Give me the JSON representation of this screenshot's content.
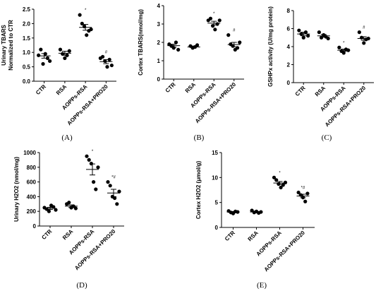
{
  "chart_data": [
    {
      "type": "dot",
      "label": "(A)",
      "ylabel": [
        "Urinary TBARS",
        "Normalized to CTR"
      ],
      "categories": [
        "CTR",
        "RSA",
        "AOPPs-RSA",
        "AOPPs-RSA+PRO20"
      ],
      "points": [
        [
          0.9,
          1.1,
          0.6,
          0.95,
          0.8,
          0.7
        ],
        [
          1.1,
          0.95,
          0.8,
          0.9,
          1.05
        ],
        [
          2.3,
          2.0,
          1.9,
          1.6,
          1.75,
          1.8
        ],
        [
          0.8,
          0.85,
          0.7,
          0.5,
          0.75,
          0.55
        ]
      ],
      "means": [
        0.88,
        0.97,
        1.87,
        0.68
      ],
      "errors": [
        0.08,
        0.07,
        0.1,
        0.07
      ],
      "annotations": [
        null,
        null,
        "*",
        "#"
      ],
      "ylim": [
        0,
        2.5
      ],
      "yticks": [
        {
          "value": 0,
          "label": "0.0"
        },
        0.5,
        {
          "value": 1,
          "label": "1.0"
        },
        1.5,
        {
          "value": 2,
          "label": "2.0"
        },
        2.5
      ],
      "color": "#000000"
    },
    {
      "type": "dot",
      "label": "(B)",
      "ylabel": [
        "Cortex TBARS(nmol/mg)"
      ],
      "categories": [
        "CTR",
        "RSA",
        "AOPPs-RSA",
        "AOPPs-RSA+PRO20"
      ],
      "points": [
        [
          1.9,
          1.8,
          1.7,
          2.0,
          1.6
        ],
        [
          1.8,
          1.7,
          1.75,
          1.85
        ],
        [
          3.2,
          3.3,
          2.9,
          2.7,
          3.0,
          3.2
        ],
        [
          2.4,
          1.9,
          1.8,
          1.6,
          1.7,
          2.0
        ]
      ],
      "means": [
        1.82,
        1.75,
        3.05,
        1.88
      ],
      "errors": [
        0.08,
        0.05,
        0.1,
        0.12
      ],
      "annotations": [
        null,
        null,
        "*",
        "#"
      ],
      "ylim": [
        0,
        4
      ],
      "yticks": [
        0,
        1,
        2,
        3,
        4
      ],
      "color": "#000000"
    },
    {
      "type": "dot",
      "label": "(C)",
      "ylabel": [
        "GSHPx activity (U/mg protein)"
      ],
      "categories": [
        "CTR",
        "RSA",
        "AOPPs-RSA",
        "AOPPs-RSA+PRO20"
      ],
      "points": [
        [
          5.8,
          5.4,
          5.0,
          5.6,
          5.2
        ],
        [
          5.6,
          5.0,
          5.3,
          5.1,
          4.9
        ],
        [
          3.9,
          3.5,
          3.3,
          3.7,
          3.6
        ],
        [
          5.6,
          5.0,
          4.4,
          4.8,
          4.9
        ]
      ],
      "means": [
        5.4,
        5.2,
        3.6,
        4.9
      ],
      "errors": [
        0.2,
        0.15,
        0.12,
        0.2
      ],
      "annotations": [
        null,
        null,
        "*",
        "#"
      ],
      "ylim": [
        0,
        8
      ],
      "yticks": [
        0,
        2,
        4,
        6,
        8
      ],
      "color": "#000000"
    },
    {
      "type": "dot",
      "label": "(D)",
      "ylabel": [
        "Urinary H2O2 (nmol/mg)"
      ],
      "categories": [
        "CTR",
        "RSA",
        "AOPPs-RSA",
        "AOPPs-RSA+PRO20"
      ],
      "points": [
        [
          250,
          230,
          200,
          280,
          260,
          220
        ],
        [
          300,
          320,
          250,
          270,
          240
        ],
        [
          950,
          900,
          850,
          600,
          500,
          800
        ],
        [
          600,
          550,
          400,
          380,
          300,
          470
        ]
      ],
      "means": [
        240,
        270,
        770,
        450
      ],
      "errors": [
        15,
        18,
        75,
        50
      ],
      "annotations": [
        null,
        null,
        "*",
        "*#"
      ],
      "ylim": [
        0,
        1000
      ],
      "yticks": [
        0,
        200,
        400,
        600,
        800,
        1000
      ],
      "color": "#000000"
    },
    {
      "type": "dot",
      "label": "(E)",
      "ylabel": [
        "Cortex H2O2 (μmol/g)"
      ],
      "categories": [
        "CTR",
        "RSA",
        "AOPPs-RSA",
        "AOPPs-RSA+PRO20"
      ],
      "points": [
        [
          3.3,
          3.0,
          2.8,
          3.2,
          3.1
        ],
        [
          3.4,
          3.0,
          3.2,
          2.9,
          3.1
        ],
        [
          10,
          9.5,
          8.7,
          8.0,
          8.5,
          9.0
        ],
        [
          7,
          6.5,
          6.0,
          5.2,
          6.8
        ]
      ],
      "means": [
        3.1,
        3.1,
        8.9,
        6.3
      ],
      "errors": [
        0.1,
        0.1,
        0.3,
        0.35
      ],
      "annotations": [
        null,
        null,
        "*",
        "*#"
      ],
      "ylim": [
        0,
        15
      ],
      "yticks": [
        0,
        5,
        10,
        15
      ],
      "color": "#000000"
    }
  ]
}
